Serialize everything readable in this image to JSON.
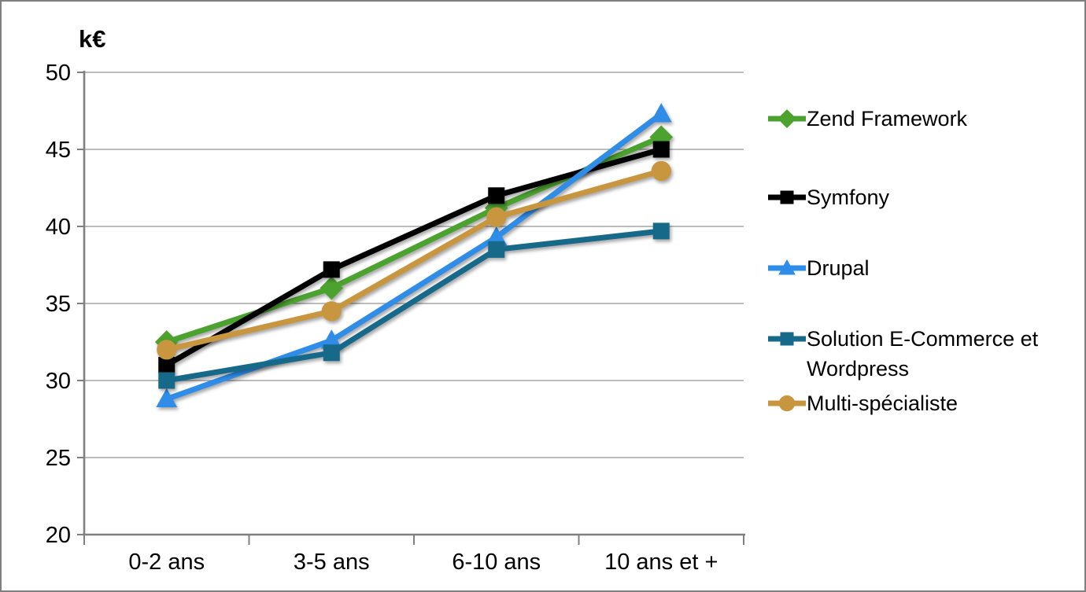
{
  "page": {
    "background": "#ffffff",
    "border_color": "#7f7f7f"
  },
  "chart_data": {
    "type": "line",
    "title": "",
    "ylabel": "k€",
    "xlabel": "",
    "categories": [
      "0-2 ans",
      "3-5 ans",
      "6-10 ans",
      "10 ans et +"
    ],
    "y_ticks": [
      20,
      25,
      30,
      35,
      40,
      45,
      50
    ],
    "ylim": [
      20,
      50
    ],
    "grid": true,
    "legend_position": "right",
    "grid_color": "#a6a6a6",
    "axis_color": "#808080",
    "series": [
      {
        "name": "Zend Framework",
        "marker": "diamond",
        "color": "#4ca22f",
        "values": [
          32.5,
          36,
          41.2,
          45.8
        ]
      },
      {
        "name": "Symfony",
        "marker": "square",
        "color": "#000000",
        "values": [
          31,
          37.2,
          42,
          45
        ]
      },
      {
        "name": "Drupal",
        "marker": "triangle",
        "color": "#2f8de8",
        "values": [
          28.8,
          32.6,
          39.3,
          47.3
        ]
      },
      {
        "name": "Solution E-Commerce et Wordpress",
        "marker": "square",
        "color": "#17698a",
        "values": [
          30,
          31.8,
          38.5,
          39.7
        ]
      },
      {
        "name": "Multi-spécialiste",
        "marker": "circle",
        "color": "#c8963e",
        "values": [
          32,
          34.5,
          40.6,
          43.6
        ]
      }
    ]
  }
}
